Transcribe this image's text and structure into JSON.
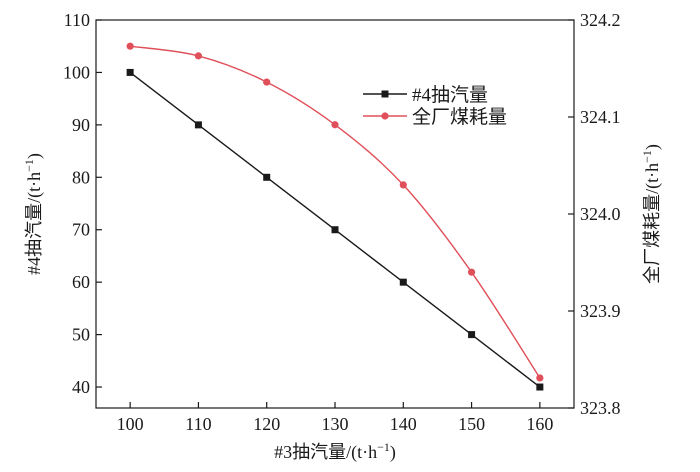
{
  "chart_data": {
    "type": "line",
    "x": [
      100,
      110,
      120,
      130,
      140,
      150,
      160
    ],
    "xlim": [
      95,
      165
    ],
    "xticks": [
      100,
      110,
      120,
      130,
      140,
      150,
      160
    ],
    "xlabel": {
      "main": "#3抽汽量/(t·h",
      "sup": "−1",
      "end": ")"
    },
    "y_left": {
      "ylim": [
        36,
        110
      ],
      "ticks": [
        40,
        50,
        60,
        70,
        80,
        90,
        100,
        110
      ],
      "label": {
        "main": "#4抽汽量/(t·h",
        "sup": "−1",
        "end": ")"
      }
    },
    "y_right": {
      "ylim": [
        323.8,
        324.2
      ],
      "ticks": [
        "323.8",
        "323.9",
        "324.0",
        "324.1",
        "324.2"
      ],
      "label": {
        "main": "全厂煤耗量/(t·h",
        "sup": "−1",
        "end": ")"
      }
    },
    "series": [
      {
        "name": "#4抽汽量",
        "axis": "left",
        "marker": "square",
        "color": "#1a1a1a",
        "style": "straight",
        "values": [
          100,
          90,
          80,
          70,
          60,
          50,
          40
        ]
      },
      {
        "name": "全厂煤耗量",
        "axis": "right",
        "marker": "circle",
        "color": "#e0505a",
        "style": "smooth",
        "values": [
          324.173,
          324.163,
          324.136,
          324.092,
          324.03,
          323.94,
          323.831
        ]
      }
    ],
    "legend": {
      "position": "upper-right-inside"
    },
    "grid": false
  }
}
